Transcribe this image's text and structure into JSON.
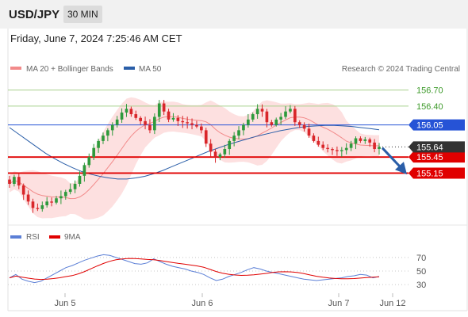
{
  "header": {
    "symbol": "USD/JPY",
    "interval": "30 MIN"
  },
  "timestamp": "Friday, June 7, 2024 7:25:46 AM CET",
  "legend": {
    "bollinger": {
      "label": "MA 20 + Bollinger Bands",
      "color": "#f28a8a"
    },
    "ma50": {
      "label": "MA 50",
      "color": "#2a5ea8"
    }
  },
  "credit": "Research © 2024 Trading Central",
  "colors": {
    "up": "#2e9a3c",
    "down": "#d9262a",
    "support": "#e00000",
    "resistance": "#2653d6",
    "target": "#a8d08d",
    "band_fill": "#fde0e0",
    "arrow": "#2a5ea8",
    "rsi": "#5b7fd6",
    "rsi_ma": "#e00000"
  },
  "chart_data": {
    "type": "candlestick",
    "y_ticks": [],
    "x_ticks": [
      "Jun 5",
      "Jun 6",
      "Jun 7",
      "Jun 12"
    ],
    "ylim": [
      154.24,
      157.02
    ],
    "last_price": "155.64",
    "levels": [
      {
        "value": 156.7,
        "label": "156.70",
        "kind": "target"
      },
      {
        "value": 156.4,
        "label": "156.40",
        "kind": "target"
      },
      {
        "value": 156.05,
        "label": "156.05",
        "kind": "resistance"
      },
      {
        "value": 155.45,
        "label": "155.45",
        "kind": "support"
      },
      {
        "value": 155.15,
        "label": "155.15",
        "kind": "support"
      }
    ],
    "closes": [
      154.95,
      155.08,
      154.92,
      154.75,
      154.62,
      154.5,
      154.48,
      154.55,
      154.62,
      154.6,
      154.68,
      154.72,
      154.8,
      154.85,
      154.95,
      155.1,
      155.3,
      155.45,
      155.62,
      155.75,
      155.85,
      155.95,
      156.05,
      156.15,
      156.28,
      156.35,
      156.25,
      156.18,
      156.12,
      156.05,
      155.95,
      156.2,
      156.45,
      156.3,
      156.15,
      156.18,
      156.12,
      156.1,
      156.08,
      156.05,
      156.02,
      155.95,
      155.7,
      155.55,
      155.45,
      155.5,
      155.6,
      155.75,
      155.85,
      155.95,
      156.05,
      156.15,
      156.25,
      156.35,
      156.3,
      156.1,
      156.05,
      156.15,
      156.2,
      156.3,
      156.35,
      156.1,
      156.05,
      155.98,
      155.85,
      155.75,
      155.68,
      155.62,
      155.6,
      155.58,
      155.56,
      155.58,
      155.62,
      155.7,
      155.8,
      155.75,
      155.78,
      155.72,
      155.6,
      155.64
    ],
    "ma50_values": [
      156.0,
      155.88,
      155.76,
      155.64,
      155.52,
      155.42,
      155.33,
      155.25,
      155.18,
      155.13,
      155.09,
      155.06,
      155.04,
      155.04,
      155.06,
      155.09,
      155.14,
      155.2,
      155.27,
      155.34,
      155.41,
      155.48,
      155.55,
      155.61,
      155.67,
      155.72,
      155.77,
      155.82,
      155.86,
      155.9,
      155.94,
      155.97,
      156.0,
      156.02,
      156.03,
      156.04,
      156.04,
      156.03,
      156.02,
      156.0,
      155.98,
      155.96
    ],
    "rsi": [
      40,
      45,
      38,
      35,
      33,
      35,
      40,
      45,
      50,
      55,
      58,
      62,
      66,
      69,
      72,
      74,
      73,
      70,
      67,
      64,
      61,
      60,
      62,
      68,
      64,
      60,
      57,
      55,
      53,
      50,
      48,
      45,
      40,
      36,
      38,
      42,
      45,
      48,
      52,
      55,
      53,
      50,
      48,
      46,
      44,
      42,
      40,
      38,
      37,
      36,
      37,
      38,
      39,
      40,
      42,
      43,
      45,
      44,
      40,
      42
    ],
    "rsi_ticks": [
      70,
      50,
      30
    ],
    "rsi_legend": {
      "rsi": "RSI",
      "ma": "9MA"
    }
  }
}
